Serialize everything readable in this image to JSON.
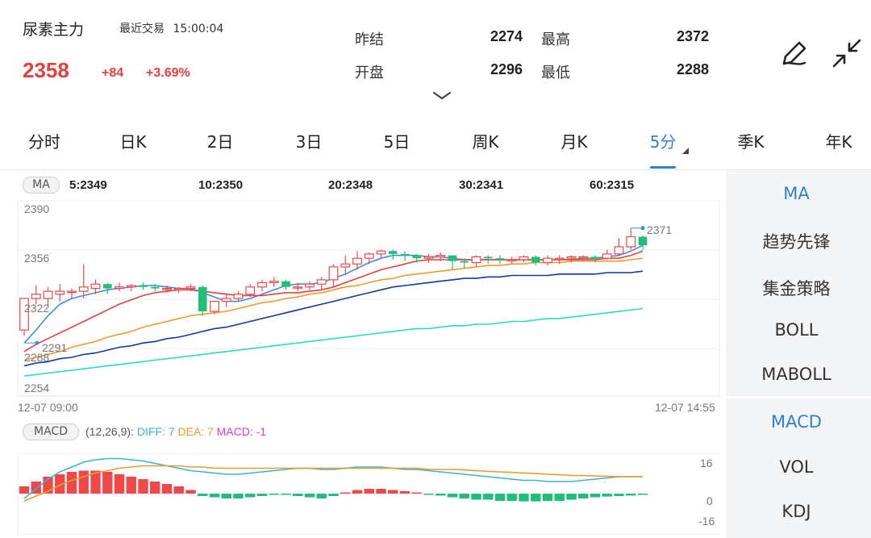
{
  "header": {
    "title": "尿素主力",
    "recent_label": "最近交易",
    "time": "15:00:04",
    "price": "2358",
    "change": "+84",
    "change_pct": "+3.69%",
    "stats": [
      {
        "label": "昨结",
        "value": "2274"
      },
      {
        "label": "开盘",
        "value": "2296"
      },
      {
        "label": "最高",
        "value": "2372"
      },
      {
        "label": "最低",
        "value": "2288"
      }
    ],
    "icons": [
      "draw-pen-icon",
      "collapse-arrows-icon",
      "chevron-down-icon"
    ]
  },
  "tabs": [
    {
      "label": "分时",
      "active": false
    },
    {
      "label": "日K",
      "active": false
    },
    {
      "label": "2日",
      "active": false
    },
    {
      "label": "3日",
      "active": false
    },
    {
      "label": "5日",
      "active": false
    },
    {
      "label": "周K",
      "active": false
    },
    {
      "label": "月K",
      "active": false
    },
    {
      "label": "5分",
      "active": true
    },
    {
      "label": "季K",
      "active": false
    },
    {
      "label": "年K",
      "active": false
    }
  ],
  "ma_legend": {
    "tag": "MA",
    "items": [
      {
        "label": "5:2349",
        "color": "#3b8fe0"
      },
      {
        "label": "10:2350",
        "color": "#e5403b"
      },
      {
        "label": "20:2348",
        "color": "#ef9a2a"
      },
      {
        "label": "30:2341",
        "color": "#123a9c"
      },
      {
        "label": "60:2315",
        "color": "#2dd8c4"
      }
    ]
  },
  "price_axis": {
    "top": "2390",
    "mid": "2356",
    "low": "2322",
    "lower": "2288",
    "bottom": "2254"
  },
  "time_axis": {
    "start": "12-07 09:00",
    "end": "12-07 14:55"
  },
  "annotations": {
    "high": "2371",
    "low": "2291"
  },
  "macd_legend": {
    "tag": "MACD",
    "params": "(12,26,9):",
    "diff": "DIFF: 7",
    "dea": "DEA: 7",
    "macd": "MACD: -1",
    "diff_color": "#36b5d8",
    "dea_color": "#ef9a2a",
    "macd_color": "#d63ccd"
  },
  "macd_axis": {
    "top": "16",
    "zero": "0",
    "bottom": "-16"
  },
  "indicators_main": [
    {
      "label": "MA",
      "active": true
    },
    {
      "label": "趋势先锋",
      "active": false
    },
    {
      "label": "集金策略",
      "active": false
    },
    {
      "label": "BOLL",
      "active": false
    },
    {
      "label": "MABOLL",
      "active": false
    }
  ],
  "indicators_sub": [
    {
      "label": "MACD",
      "active": true
    },
    {
      "label": "VOL",
      "active": false
    },
    {
      "label": "KDJ",
      "active": false
    }
  ],
  "colors": {
    "up": "#f04848",
    "down": "#1fbf7a",
    "accent": "#2f7fd6"
  },
  "chart_data": [
    {
      "type": "candlestick",
      "title": "",
      "ylim": [
        2254,
        2390
      ],
      "x_range": [
        "12-07 09:00",
        "12-07 14:55"
      ],
      "candles": [
        [
          2300,
          2322,
          2296,
          2322
        ],
        [
          2322,
          2325,
          2318,
          2331
        ],
        [
          2322,
          2327,
          2316,
          2330
        ],
        [
          2325,
          2327,
          2320,
          2332
        ],
        [
          2327,
          2327,
          2322,
          2329
        ],
        [
          2327,
          2330,
          2322,
          2346
        ],
        [
          2329,
          2332,
          2325,
          2335
        ],
        [
          2332,
          2329,
          2325,
          2333
        ],
        [
          2329,
          2330,
          2327,
          2333
        ],
        [
          2330,
          2331,
          2327,
          2332
        ],
        [
          2331,
          2330,
          2328,
          2333
        ],
        [
          2330,
          2329,
          2327,
          2332
        ],
        [
          2329,
          2329,
          2326,
          2331
        ],
        [
          2329,
          2329,
          2326,
          2330
        ],
        [
          2329,
          2330,
          2327,
          2332
        ],
        [
          2330,
          2313,
          2310,
          2331
        ],
        [
          2313,
          2320,
          2311,
          2320
        ],
        [
          2320,
          2322,
          2316,
          2325
        ],
        [
          2322,
          2325,
          2320,
          2327
        ],
        [
          2325,
          2330,
          2323,
          2332
        ],
        [
          2330,
          2333,
          2327,
          2335
        ],
        [
          2333,
          2334,
          2330,
          2337
        ],
        [
          2334,
          2330,
          2328,
          2335
        ],
        [
          2330,
          2330,
          2327,
          2333
        ],
        [
          2330,
          2332,
          2328,
          2334
        ],
        [
          2332,
          2335,
          2328,
          2337
        ],
        [
          2335,
          2344,
          2330,
          2346
        ],
        [
          2344,
          2346,
          2338,
          2352
        ],
        [
          2346,
          2350,
          2342,
          2355
        ],
        [
          2350,
          2353,
          2346,
          2354
        ],
        [
          2353,
          2355,
          2350,
          2356
        ],
        [
          2355,
          2353,
          2349,
          2356
        ],
        [
          2353,
          2352,
          2348,
          2355
        ],
        [
          2352,
          2350,
          2347,
          2353
        ],
        [
          2350,
          2351,
          2347,
          2353
        ],
        [
          2351,
          2352,
          2348,
          2354
        ],
        [
          2352,
          2348,
          2342,
          2352
        ],
        [
          2348,
          2347,
          2343,
          2350
        ],
        [
          2347,
          2351,
          2344,
          2352
        ],
        [
          2351,
          2350,
          2346,
          2352
        ],
        [
          2350,
          2349,
          2346,
          2352
        ],
        [
          2349,
          2349,
          2346,
          2351
        ],
        [
          2349,
          2351,
          2347,
          2352
        ],
        [
          2351,
          2347,
          2345,
          2352
        ],
        [
          2347,
          2350,
          2345,
          2352
        ],
        [
          2350,
          2350,
          2346,
          2352
        ],
        [
          2350,
          2351,
          2347,
          2352
        ],
        [
          2351,
          2351,
          2348,
          2352
        ],
        [
          2351,
          2350,
          2347,
          2352
        ],
        [
          2350,
          2353,
          2349,
          2356
        ],
        [
          2353,
          2358,
          2352,
          2364
        ],
        [
          2358,
          2365,
          2356,
          2371
        ],
        [
          2365,
          2359,
          2356,
          2366
        ]
      ],
      "series": [
        {
          "name": "5",
          "values": [
            2291,
            2300,
            2310,
            2318,
            2322,
            2324,
            2326,
            2328,
            2329,
            2330,
            2331,
            2331,
            2330,
            2329,
            2329,
            2326,
            2323,
            2320,
            2320,
            2322,
            2325,
            2328,
            2331,
            2332,
            2332,
            2333,
            2336,
            2339,
            2343,
            2347,
            2350,
            2352,
            2352,
            2352,
            2351,
            2351,
            2350,
            2349,
            2349,
            2349,
            2349,
            2349,
            2349,
            2349,
            2349,
            2349,
            2349,
            2350,
            2350,
            2351,
            2352,
            2355,
            2359
          ]
        },
        {
          "name": "10",
          "values": [
            2285,
            2290,
            2294,
            2298,
            2302,
            2306,
            2310,
            2314,
            2318,
            2321,
            2324,
            2326,
            2327,
            2328,
            2328,
            2327,
            2326,
            2325,
            2324,
            2324,
            2324,
            2325,
            2326,
            2326,
            2327,
            2328,
            2330,
            2333,
            2336,
            2339,
            2342,
            2344,
            2346,
            2348,
            2349,
            2349,
            2349,
            2349,
            2349,
            2349,
            2349,
            2349,
            2349,
            2349,
            2349,
            2349,
            2349,
            2349,
            2349,
            2350,
            2350,
            2352,
            2355
          ]
        },
        {
          "name": "20",
          "values": [
            2279,
            2281,
            2283,
            2285,
            2288,
            2290,
            2292,
            2295,
            2297,
            2299,
            2302,
            2304,
            2306,
            2308,
            2310,
            2311,
            2312,
            2313,
            2315,
            2317,
            2319,
            2320,
            2322,
            2323,
            2325,
            2326,
            2328,
            2330,
            2331,
            2333,
            2335,
            2336,
            2338,
            2339,
            2340,
            2341,
            2342,
            2343,
            2344,
            2345,
            2345,
            2346,
            2346,
            2347,
            2347,
            2347,
            2348,
            2348,
            2348,
            2348,
            2348,
            2349,
            2350
          ]
        },
        {
          "name": "30",
          "values": [
            2275,
            2277,
            2278,
            2280,
            2281,
            2283,
            2284,
            2286,
            2288,
            2289,
            2291,
            2292,
            2294,
            2295,
            2297,
            2299,
            2301,
            2302,
            2304,
            2306,
            2308,
            2310,
            2312,
            2314,
            2316,
            2318,
            2320,
            2322,
            2324,
            2326,
            2328,
            2330,
            2331,
            2332,
            2333,
            2334,
            2335,
            2336,
            2336,
            2337,
            2337,
            2338,
            2338,
            2338,
            2338,
            2339,
            2339,
            2339,
            2339,
            2340,
            2340,
            2340,
            2341
          ]
        },
        {
          "name": "60",
          "values": [
            2268,
            2269,
            2270,
            2271,
            2272,
            2273,
            2274,
            2275,
            2276,
            2277,
            2278,
            2279,
            2280,
            2281,
            2282,
            2283,
            2284,
            2285,
            2286,
            2287,
            2288,
            2289,
            2290,
            2291,
            2292,
            2293,
            2294,
            2295,
            2296,
            2297,
            2298,
            2299,
            2300,
            2301,
            2301,
            2302,
            2303,
            2303,
            2304,
            2304,
            2305,
            2306,
            2306,
            2307,
            2308,
            2308,
            2309,
            2310,
            2311,
            2312,
            2313,
            2314,
            2315
          ]
        }
      ]
    },
    {
      "type": "bar",
      "title": "",
      "ylim": [
        -16,
        16
      ],
      "series": [
        {
          "name": "MACD",
          "values": [
            3,
            5,
            7,
            8,
            9,
            9.5,
            9.5,
            9,
            8,
            7,
            6,
            5,
            4,
            3,
            1.5,
            -1,
            -1.5,
            -2,
            -2,
            -1.5,
            -1,
            -0.5,
            -0.5,
            -1,
            -1.5,
            -2,
            -1,
            0.5,
            1.5,
            2,
            2,
            1.5,
            1,
            0.5,
            -0.3,
            -0.8,
            -1.5,
            -2,
            -2.5,
            -2.5,
            -3,
            -3,
            -3.2,
            -3.2,
            -3,
            -3,
            -2.5,
            -2,
            -1.5,
            -1.2,
            -1,
            -0.8,
            -0.5
          ]
        },
        {
          "name": "DIFF",
          "values": [
            -2,
            2,
            6,
            9,
            11,
            13,
            14,
            14.5,
            14.5,
            14,
            13.5,
            12.5,
            11.5,
            10.5,
            9.5,
            9,
            8.5,
            8,
            8,
            8.5,
            9,
            9.5,
            10,
            10.5,
            10.5,
            10,
            10,
            10.5,
            11,
            11,
            11,
            10.5,
            10,
            10,
            9.5,
            9,
            8.5,
            8,
            7.5,
            7,
            6.5,
            6,
            5.5,
            5.5,
            5,
            5,
            5,
            5.5,
            6,
            6.5,
            7,
            7,
            7
          ]
        },
        {
          "name": "DEA",
          "values": [
            -3,
            -1,
            1,
            3.5,
            5.5,
            7,
            8.5,
            9.5,
            10.5,
            11,
            11.5,
            11.5,
            11.5,
            11.5,
            11,
            11,
            10.5,
            10.5,
            10.5,
            10.5,
            10.5,
            10.5,
            10.5,
            10.5,
            10.5,
            10.5,
            10.5,
            10.5,
            10.5,
            10.5,
            10.5,
            10.5,
            10.5,
            10.5,
            10,
            10,
            10,
            9.8,
            9.5,
            9.2,
            9,
            8.8,
            8.5,
            8.3,
            8,
            7.8,
            7.5,
            7.5,
            7.3,
            7.2,
            7,
            7,
            7
          ]
        }
      ]
    }
  ]
}
